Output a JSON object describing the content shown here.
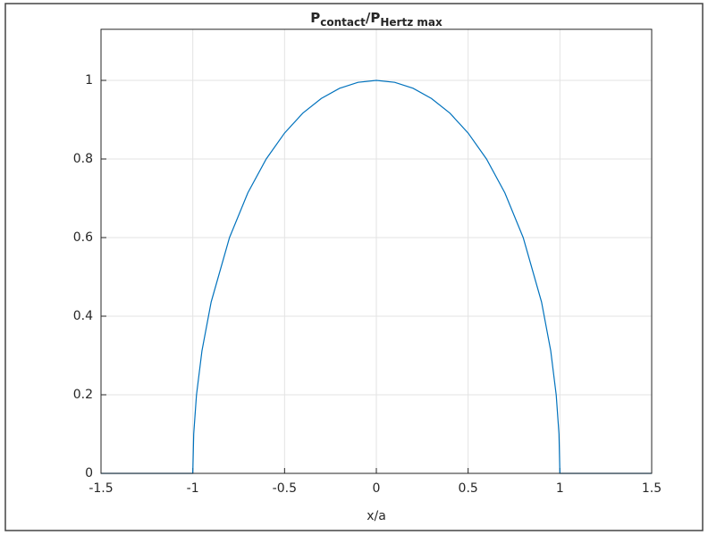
{
  "chart_data": {
    "type": "line",
    "title": [
      "P",
      "contact",
      "/P",
      "Hertz max"
    ],
    "x_label": "x/a",
    "x": [
      -1.5,
      -1.0,
      -0.995,
      -0.98,
      -0.95,
      -0.9,
      -0.8,
      -0.7,
      -0.6,
      -0.5,
      -0.4,
      -0.3,
      -0.2,
      -0.1,
      0,
      0.1,
      0.2,
      0.3,
      0.4,
      0.5,
      0.6,
      0.7,
      0.8,
      0.9,
      0.95,
      0.98,
      0.995,
      1.0,
      1.5
    ],
    "series": [
      {
        "color": "#0072bd",
        "values": [
          0,
          0,
          0.1,
          0.199,
          0.312,
          0.436,
          0.6,
          0.714,
          0.8,
          0.866,
          0.917,
          0.954,
          0.98,
          0.995,
          1,
          0.995,
          0.98,
          0.954,
          0.917,
          0.866,
          0.8,
          0.714,
          0.6,
          0.436,
          0.312,
          0.199,
          0.1,
          0,
          0
        ]
      }
    ],
    "xlim": [
      -1.5,
      1.5
    ],
    "ylim": [
      0,
      1.13
    ],
    "xticks": [
      -1.5,
      -1,
      -0.5,
      0,
      0.5,
      1,
      1.5
    ],
    "yticks": [
      0,
      0.2,
      0.4,
      0.6,
      0.8,
      1
    ],
    "grid": true
  }
}
